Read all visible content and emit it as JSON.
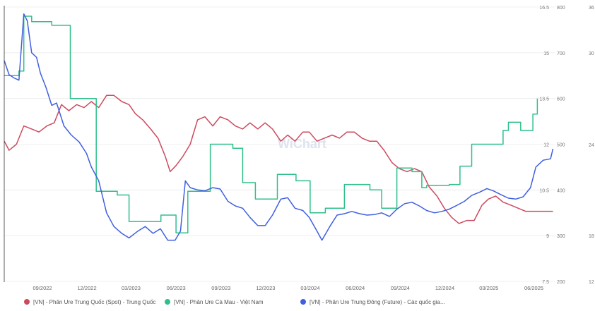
{
  "watermark": "WiChart",
  "colors": {
    "red": "#cc4a5e",
    "green": "#2fbf8a",
    "blue": "#3f5fe0",
    "grid": "#ececec",
    "axis": "#333333"
  },
  "chart_data": {
    "type": "line",
    "x_range": [
      "2022-06-15",
      "2025-07-15"
    ],
    "x_ticks": [
      {
        "date": "2022-09-01",
        "label": "09/2022"
      },
      {
        "date": "2022-12-01",
        "label": "12/2022"
      },
      {
        "date": "2023-03-01",
        "label": "03/2023"
      },
      {
        "date": "2023-06-01",
        "label": "06/2023"
      },
      {
        "date": "2023-09-01",
        "label": "09/2023"
      },
      {
        "date": "2023-12-01",
        "label": "12/2023"
      },
      {
        "date": "2024-03-01",
        "label": "03/2024"
      },
      {
        "date": "2024-06-01",
        "label": "06/2024"
      },
      {
        "date": "2024-09-01",
        "label": "09/2024"
      },
      {
        "date": "2024-12-01",
        "label": "12/2024"
      },
      {
        "date": "2025-03-01",
        "label": "03/2025"
      },
      {
        "date": "2025-06-01",
        "label": "06/2025"
      }
    ],
    "y_left": {
      "range": [
        7.5,
        16.5
      ],
      "ticks": [
        "7.5",
        "9",
        "10.5",
        "12",
        "13.5",
        "15",
        "16.5"
      ]
    },
    "y_right": {
      "range": [
        200,
        800
      ],
      "ticks": [
        "200",
        "300",
        "400",
        "500",
        "600",
        "700",
        "800"
      ]
    },
    "y_right2_ticks": [
      "12",
      "18",
      "24",
      "30",
      "36"
    ],
    "legend_position": "bottom-left",
    "series": [
      {
        "name": "[VN] - Phân Ure Trung Quốc (Spot) - Trung Quốc",
        "axis": "left",
        "color": "#cc4a5e",
        "step": false,
        "points": [
          [
            "2022-06-15",
            12.1
          ],
          [
            "2022-06-25",
            11.8
          ],
          [
            "2022-07-10",
            12.0
          ],
          [
            "2022-07-25",
            12.6
          ],
          [
            "2022-08-10",
            12.5
          ],
          [
            "2022-08-25",
            12.4
          ],
          [
            "2022-09-10",
            12.6
          ],
          [
            "2022-09-25",
            12.7
          ],
          [
            "2022-10-10",
            13.3
          ],
          [
            "2022-10-25",
            13.1
          ],
          [
            "2022-11-10",
            13.3
          ],
          [
            "2022-11-25",
            13.2
          ],
          [
            "2022-12-10",
            13.4
          ],
          [
            "2022-12-25",
            13.2
          ],
          [
            "2023-01-10",
            13.6
          ],
          [
            "2023-01-25",
            13.6
          ],
          [
            "2023-02-10",
            13.4
          ],
          [
            "2023-02-25",
            13.3
          ],
          [
            "2023-03-10",
            13.0
          ],
          [
            "2023-03-25",
            12.8
          ],
          [
            "2023-04-10",
            12.5
          ],
          [
            "2023-04-25",
            12.2
          ],
          [
            "2023-05-10",
            11.6
          ],
          [
            "2023-05-20",
            11.1
          ],
          [
            "2023-06-01",
            11.3
          ],
          [
            "2023-06-15",
            11.6
          ],
          [
            "2023-06-30",
            12.0
          ],
          [
            "2023-07-15",
            12.8
          ],
          [
            "2023-07-30",
            12.9
          ],
          [
            "2023-08-15",
            12.6
          ],
          [
            "2023-08-30",
            12.9
          ],
          [
            "2023-09-15",
            12.8
          ],
          [
            "2023-09-30",
            12.6
          ],
          [
            "2023-10-15",
            12.5
          ],
          [
            "2023-10-30",
            12.7
          ],
          [
            "2023-11-15",
            12.5
          ],
          [
            "2023-11-30",
            12.7
          ],
          [
            "2023-12-15",
            12.5
          ],
          [
            "2024-01-01",
            12.1
          ],
          [
            "2024-01-15",
            12.3
          ],
          [
            "2024-01-30",
            12.1
          ],
          [
            "2024-02-15",
            12.4
          ],
          [
            "2024-02-28",
            12.4
          ],
          [
            "2024-03-15",
            12.1
          ],
          [
            "2024-03-30",
            12.2
          ],
          [
            "2024-04-15",
            12.3
          ],
          [
            "2024-04-30",
            12.2
          ],
          [
            "2024-05-15",
            12.4
          ],
          [
            "2024-05-30",
            12.4
          ],
          [
            "2024-06-15",
            12.2
          ],
          [
            "2024-06-30",
            12.1
          ],
          [
            "2024-07-15",
            12.1
          ],
          [
            "2024-07-30",
            11.8
          ],
          [
            "2024-08-15",
            11.4
          ],
          [
            "2024-08-30",
            11.2
          ],
          [
            "2024-09-15",
            11.1
          ],
          [
            "2024-09-30",
            11.2
          ],
          [
            "2024-10-15",
            11.1
          ],
          [
            "2024-10-30",
            10.6
          ],
          [
            "2024-11-15",
            10.3
          ],
          [
            "2024-11-30",
            9.9
          ],
          [
            "2024-12-15",
            9.6
          ],
          [
            "2024-12-30",
            9.4
          ],
          [
            "2025-01-15",
            9.5
          ],
          [
            "2025-01-30",
            9.5
          ],
          [
            "2025-02-15",
            10.0
          ],
          [
            "2025-02-28",
            10.2
          ],
          [
            "2025-03-15",
            10.3
          ],
          [
            "2025-03-30",
            10.1
          ],
          [
            "2025-04-15",
            10.0
          ],
          [
            "2025-04-30",
            9.9
          ],
          [
            "2025-05-15",
            9.8
          ],
          [
            "2025-05-30",
            9.8
          ],
          [
            "2025-06-15",
            9.8
          ],
          [
            "2025-06-30",
            9.8
          ],
          [
            "2025-07-10",
            9.8
          ]
        ]
      },
      {
        "name": "[VN] - Phân Ure Cà Mau - Việt Nam",
        "axis": "right",
        "color": "#2fbf8a",
        "step": true,
        "points": [
          [
            "2022-06-15",
            650
          ],
          [
            "2022-07-15",
            660
          ],
          [
            "2022-07-25",
            780
          ],
          [
            "2022-08-10",
            768
          ],
          [
            "2022-08-25",
            768
          ],
          [
            "2022-09-20",
            760
          ],
          [
            "2022-10-28",
            600
          ],
          [
            "2022-12-10",
            600
          ],
          [
            "2022-12-20",
            397
          ],
          [
            "2023-02-01",
            389
          ],
          [
            "2023-02-25",
            331
          ],
          [
            "2023-04-10",
            331
          ],
          [
            "2023-05-01",
            345
          ],
          [
            "2023-06-01",
            306
          ],
          [
            "2023-06-25",
            397
          ],
          [
            "2023-08-10",
            500
          ],
          [
            "2023-09-25",
            491
          ],
          [
            "2023-10-15",
            416
          ],
          [
            "2023-11-10",
            380
          ],
          [
            "2023-12-05",
            380
          ],
          [
            "2023-12-25",
            434
          ],
          [
            "2024-02-01",
            420
          ],
          [
            "2024-03-01",
            350
          ],
          [
            "2024-04-01",
            360
          ],
          [
            "2024-05-10",
            412
          ],
          [
            "2024-07-01",
            400
          ],
          [
            "2024-07-25",
            360
          ],
          [
            "2024-08-25",
            448
          ],
          [
            "2024-09-25",
            440
          ],
          [
            "2024-10-15",
            405
          ],
          [
            "2024-10-25",
            410
          ],
          [
            "2024-12-10",
            412
          ],
          [
            "2025-01-01",
            452
          ],
          [
            "2025-01-25",
            500
          ],
          [
            "2025-03-10",
            500
          ],
          [
            "2025-03-30",
            530
          ],
          [
            "2025-04-10",
            548
          ],
          [
            "2025-05-05",
            530
          ],
          [
            "2025-05-30",
            566
          ],
          [
            "2025-06-08",
            600
          ]
        ]
      },
      {
        "name": "[VN] - Phân Ure Trung Đông (Future) - Các quốc gia...",
        "axis": "right",
        "color": "#3f5fe0",
        "step": false,
        "points": [
          [
            "2022-06-15",
            683
          ],
          [
            "2022-06-25",
            652
          ],
          [
            "2022-07-05",
            645
          ],
          [
            "2022-07-15",
            640
          ],
          [
            "2022-07-25",
            785
          ],
          [
            "2022-08-01",
            770
          ],
          [
            "2022-08-10",
            700
          ],
          [
            "2022-08-20",
            690
          ],
          [
            "2022-08-28",
            655
          ],
          [
            "2022-09-08",
            625
          ],
          [
            "2022-09-20",
            585
          ],
          [
            "2022-09-30",
            590
          ],
          [
            "2022-10-15",
            540
          ],
          [
            "2022-10-30",
            520
          ],
          [
            "2022-11-15",
            505
          ],
          [
            "2022-11-30",
            480
          ],
          [
            "2022-12-10",
            450
          ],
          [
            "2022-12-25",
            420
          ],
          [
            "2023-01-10",
            350
          ],
          [
            "2023-01-25",
            320
          ],
          [
            "2023-02-10",
            305
          ],
          [
            "2023-02-25",
            295
          ],
          [
            "2023-03-15",
            310
          ],
          [
            "2023-03-30",
            320
          ],
          [
            "2023-04-15",
            305
          ],
          [
            "2023-04-30",
            315
          ],
          [
            "2023-05-15",
            290
          ],
          [
            "2023-05-30",
            290
          ],
          [
            "2023-06-10",
            310
          ],
          [
            "2023-06-20",
            420
          ],
          [
            "2023-06-30",
            405
          ],
          [
            "2023-07-15",
            400
          ],
          [
            "2023-07-30",
            398
          ],
          [
            "2023-08-15",
            405
          ],
          [
            "2023-08-30",
            402
          ],
          [
            "2023-09-15",
            375
          ],
          [
            "2023-09-30",
            365
          ],
          [
            "2023-10-15",
            360
          ],
          [
            "2023-10-30",
            340
          ],
          [
            "2023-11-15",
            322
          ],
          [
            "2023-11-30",
            322
          ],
          [
            "2023-12-15",
            345
          ],
          [
            "2024-01-01",
            380
          ],
          [
            "2024-01-15",
            383
          ],
          [
            "2024-01-30",
            360
          ],
          [
            "2024-02-15",
            355
          ],
          [
            "2024-02-28",
            340
          ],
          [
            "2024-03-15",
            310
          ],
          [
            "2024-03-25",
            290
          ],
          [
            "2024-04-10",
            320
          ],
          [
            "2024-04-25",
            345
          ],
          [
            "2024-05-10",
            348
          ],
          [
            "2024-05-25",
            353
          ],
          [
            "2024-06-10",
            348
          ],
          [
            "2024-06-25",
            345
          ],
          [
            "2024-07-10",
            346
          ],
          [
            "2024-07-25",
            350
          ],
          [
            "2024-08-10",
            342
          ],
          [
            "2024-08-25",
            358
          ],
          [
            "2024-09-10",
            370
          ],
          [
            "2024-09-25",
            373
          ],
          [
            "2024-10-10",
            365
          ],
          [
            "2024-10-25",
            355
          ],
          [
            "2024-11-10",
            350
          ],
          [
            "2024-11-25",
            353
          ],
          [
            "2024-12-10",
            358
          ],
          [
            "2024-12-25",
            366
          ],
          [
            "2025-01-10",
            375
          ],
          [
            "2025-01-25",
            388
          ],
          [
            "2025-02-10",
            395
          ],
          [
            "2025-02-25",
            403
          ],
          [
            "2025-03-10",
            398
          ],
          [
            "2025-03-25",
            390
          ],
          [
            "2025-04-10",
            382
          ],
          [
            "2025-04-25",
            380
          ],
          [
            "2025-05-10",
            385
          ],
          [
            "2025-05-25",
            405
          ],
          [
            "2025-06-05",
            450
          ],
          [
            "2025-06-20",
            465
          ],
          [
            "2025-07-05",
            468
          ],
          [
            "2025-07-10",
            490
          ]
        ]
      }
    ]
  }
}
